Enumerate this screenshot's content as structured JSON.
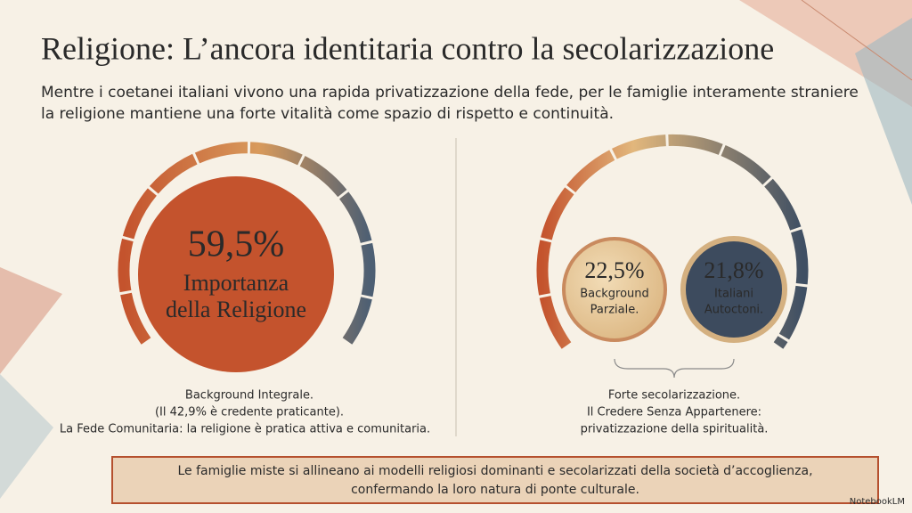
{
  "header": {
    "title": "Religione: L’ancora identitaria contro la secolarizzazione",
    "subtitle": [
      "Mentre i coetanei italiani vivono una rapida privatizzazione della fede, per le famiglie interamente straniere",
      "la religione mantiene una forte vitalità come spazio di rispetto e continuità."
    ]
  },
  "left": {
    "value": "59,5%",
    "label": [
      "Importanza",
      "della Religione"
    ],
    "caption": [
      "Background Integrale.",
      "(Il 42,9% è credente praticante).",
      "La Fede Comunitaria: la religione è pratica attiva e comunitaria."
    ]
  },
  "right": {
    "circles": [
      {
        "value": "22,5%",
        "label": [
          "Background",
          "Parziale."
        ]
      },
      {
        "value": "21,8%",
        "label": [
          "Italiani",
          "Autoctoni."
        ]
      }
    ],
    "caption": [
      "Forte secolarizzazione.",
      "Il Credere Senza Appartenere:",
      "privatizzazione della spiritualità."
    ]
  },
  "footer": {
    "text": [
      "Le famiglie miste si allineano ai modelli religiosi dominanti e secolarizzati della società d’accoglienza,",
      "confermando la loro natura di ponte culturale."
    ]
  },
  "brand": "NotebookLM"
}
